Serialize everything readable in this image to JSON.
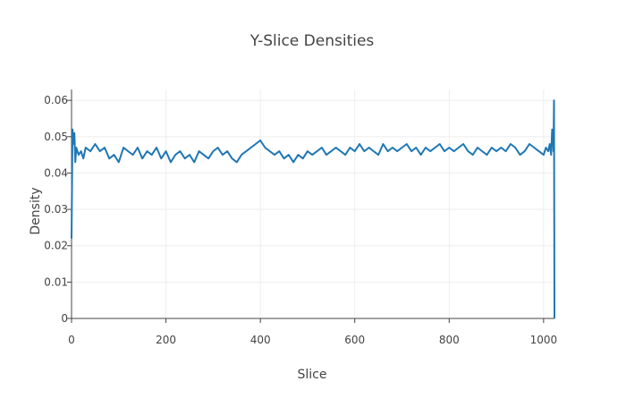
{
  "chart_data": {
    "type": "line",
    "title": "Y-Slice Densities",
    "xlabel": "Slice",
    "ylabel": "Density",
    "xlim": [
      0,
      1023
    ],
    "ylim": [
      0,
      0.063
    ],
    "x_ticks": [
      0,
      200,
      400,
      600,
      800,
      1000
    ],
    "y_ticks": [
      0,
      0.01,
      0.02,
      0.03,
      0.04,
      0.05,
      0.06
    ],
    "y_tick_labels": [
      "0",
      "0.01",
      "0.02",
      "0.03",
      "0.04",
      "0.05",
      "0.06"
    ],
    "grid": true,
    "legend": "none",
    "series_color": "#1f77b4",
    "series": [
      {
        "x": [
          0,
          2,
          4,
          6,
          8,
          10,
          15,
          20,
          25,
          30,
          40,
          50,
          60,
          70,
          80,
          90,
          100,
          110,
          120,
          130,
          140,
          150,
          160,
          170,
          180,
          190,
          200,
          210,
          220,
          230,
          240,
          250,
          260,
          270,
          280,
          290,
          300,
          310,
          320,
          330,
          340,
          350,
          360,
          370,
          380,
          390,
          400,
          410,
          420,
          430,
          440,
          450,
          460,
          470,
          480,
          490,
          500,
          510,
          520,
          530,
          540,
          550,
          560,
          570,
          580,
          590,
          600,
          610,
          620,
          630,
          640,
          650,
          660,
          670,
          680,
          690,
          700,
          710,
          720,
          730,
          740,
          750,
          760,
          770,
          780,
          790,
          800,
          810,
          820,
          830,
          840,
          850,
          860,
          870,
          880,
          890,
          900,
          910,
          920,
          930,
          940,
          950,
          960,
          970,
          980,
          990,
          1000,
          1005,
          1010,
          1013,
          1016,
          1018,
          1020,
          1021,
          1022,
          1023
        ],
        "values": [
          0.022,
          0.052,
          0.048,
          0.051,
          0.043,
          0.047,
          0.045,
          0.046,
          0.044,
          0.047,
          0.046,
          0.048,
          0.046,
          0.047,
          0.044,
          0.045,
          0.043,
          0.047,
          0.046,
          0.045,
          0.047,
          0.044,
          0.046,
          0.045,
          0.047,
          0.044,
          0.046,
          0.043,
          0.045,
          0.046,
          0.044,
          0.045,
          0.043,
          0.046,
          0.045,
          0.044,
          0.046,
          0.047,
          0.045,
          0.046,
          0.044,
          0.043,
          0.045,
          0.046,
          0.047,
          0.048,
          0.049,
          0.047,
          0.046,
          0.045,
          0.046,
          0.044,
          0.045,
          0.043,
          0.045,
          0.044,
          0.046,
          0.045,
          0.046,
          0.047,
          0.045,
          0.046,
          0.047,
          0.046,
          0.045,
          0.047,
          0.046,
          0.048,
          0.046,
          0.047,
          0.046,
          0.045,
          0.048,
          0.046,
          0.047,
          0.046,
          0.047,
          0.048,
          0.046,
          0.047,
          0.045,
          0.047,
          0.046,
          0.047,
          0.048,
          0.046,
          0.047,
          0.046,
          0.047,
          0.048,
          0.046,
          0.045,
          0.047,
          0.046,
          0.045,
          0.047,
          0.046,
          0.047,
          0.046,
          0.048,
          0.047,
          0.045,
          0.046,
          0.048,
          0.047,
          0.046,
          0.045,
          0.047,
          0.046,
          0.048,
          0.045,
          0.052,
          0.05,
          0.046,
          0.06,
          0.0
        ]
      }
    ]
  }
}
